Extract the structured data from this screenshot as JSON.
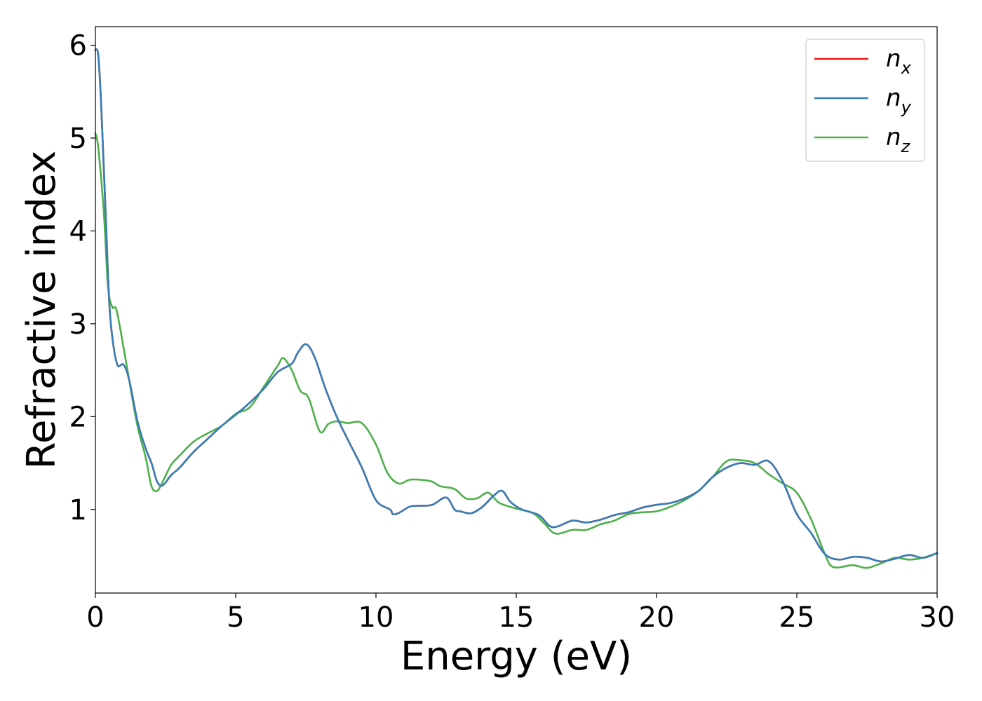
{
  "chart_data": {
    "type": "line",
    "title": "",
    "xlabel": "Energy (eV)",
    "ylabel": "Refractive index",
    "xlim": [
      0,
      30
    ],
    "ylim": [
      0.1,
      6.2
    ],
    "xticks": [
      0,
      5,
      10,
      15,
      20,
      25,
      30
    ],
    "xtick_labels": [
      "0",
      "5",
      "10",
      "15",
      "20",
      "25",
      "30"
    ],
    "yticks": [
      1,
      2,
      3,
      4,
      5,
      6
    ],
    "ytick_labels": [
      "1",
      "2",
      "3",
      "4",
      "5",
      "6"
    ],
    "grid": false,
    "legend_position": "top-right",
    "series": [
      {
        "name": "n",
        "subscript": "x",
        "color": "#e41a1c",
        "points": [
          [
            0,
            5.95
          ],
          [
            0.1,
            5.9
          ],
          [
            0.2,
            5.4
          ],
          [
            0.35,
            4.3
          ],
          [
            0.5,
            3.2
          ],
          [
            0.65,
            2.75
          ],
          [
            0.8,
            2.55
          ],
          [
            1.0,
            2.56
          ],
          [
            1.2,
            2.4
          ],
          [
            1.5,
            1.95
          ],
          [
            1.8,
            1.65
          ],
          [
            2.0,
            1.5
          ],
          [
            2.2,
            1.3
          ],
          [
            2.4,
            1.26
          ],
          [
            2.7,
            1.37
          ],
          [
            3.0,
            1.45
          ],
          [
            3.5,
            1.62
          ],
          [
            4.0,
            1.76
          ],
          [
            4.5,
            1.9
          ],
          [
            5.0,
            2.02
          ],
          [
            5.5,
            2.15
          ],
          [
            6.0,
            2.3
          ],
          [
            6.5,
            2.48
          ],
          [
            7.0,
            2.57
          ],
          [
            7.2,
            2.68
          ],
          [
            7.5,
            2.78
          ],
          [
            7.8,
            2.65
          ],
          [
            8.2,
            2.3
          ],
          [
            8.6,
            2.0
          ],
          [
            9.0,
            1.75
          ],
          [
            9.5,
            1.45
          ],
          [
            10.0,
            1.1
          ],
          [
            10.5,
            1.0
          ],
          [
            10.6,
            0.95
          ],
          [
            10.8,
            0.96
          ],
          [
            11.2,
            1.03
          ],
          [
            11.5,
            1.04
          ],
          [
            12.0,
            1.05
          ],
          [
            12.5,
            1.13
          ],
          [
            12.8,
            1.0
          ],
          [
            13.0,
            0.98
          ],
          [
            13.4,
            0.96
          ],
          [
            13.8,
            1.03
          ],
          [
            14.2,
            1.15
          ],
          [
            14.5,
            1.2
          ],
          [
            14.8,
            1.08
          ],
          [
            15.2,
            1.0
          ],
          [
            15.8,
            0.94
          ],
          [
            16.2,
            0.82
          ],
          [
            16.5,
            0.82
          ],
          [
            17.0,
            0.88
          ],
          [
            17.5,
            0.86
          ],
          [
            18.0,
            0.89
          ],
          [
            18.5,
            0.94
          ],
          [
            19.0,
            0.97
          ],
          [
            19.5,
            1.02
          ],
          [
            20.0,
            1.05
          ],
          [
            20.5,
            1.07
          ],
          [
            21.0,
            1.12
          ],
          [
            21.5,
            1.2
          ],
          [
            22.0,
            1.35
          ],
          [
            22.5,
            1.45
          ],
          [
            23.0,
            1.5
          ],
          [
            23.5,
            1.48
          ],
          [
            24.0,
            1.52
          ],
          [
            24.5,
            1.3
          ],
          [
            25.0,
            0.95
          ],
          [
            25.5,
            0.75
          ],
          [
            26.0,
            0.52
          ],
          [
            26.5,
            0.46
          ],
          [
            27.0,
            0.49
          ],
          [
            27.5,
            0.48
          ],
          [
            28.0,
            0.44
          ],
          [
            28.5,
            0.47
          ],
          [
            29.0,
            0.51
          ],
          [
            29.5,
            0.48
          ],
          [
            30.0,
            0.53
          ]
        ]
      },
      {
        "name": "n",
        "subscript": "y",
        "color": "#377eb8",
        "points": [
          [
            0,
            5.95
          ],
          [
            0.1,
            5.9
          ],
          [
            0.2,
            5.4
          ],
          [
            0.35,
            4.3
          ],
          [
            0.5,
            3.2
          ],
          [
            0.65,
            2.75
          ],
          [
            0.8,
            2.55
          ],
          [
            1.0,
            2.56
          ],
          [
            1.2,
            2.4
          ],
          [
            1.5,
            1.95
          ],
          [
            1.8,
            1.65
          ],
          [
            2.0,
            1.5
          ],
          [
            2.2,
            1.3
          ],
          [
            2.4,
            1.26
          ],
          [
            2.7,
            1.37
          ],
          [
            3.0,
            1.45
          ],
          [
            3.5,
            1.62
          ],
          [
            4.0,
            1.76
          ],
          [
            4.5,
            1.9
          ],
          [
            5.0,
            2.02
          ],
          [
            5.5,
            2.15
          ],
          [
            6.0,
            2.3
          ],
          [
            6.5,
            2.48
          ],
          [
            7.0,
            2.57
          ],
          [
            7.2,
            2.68
          ],
          [
            7.5,
            2.78
          ],
          [
            7.8,
            2.65
          ],
          [
            8.2,
            2.3
          ],
          [
            8.6,
            2.0
          ],
          [
            9.0,
            1.75
          ],
          [
            9.5,
            1.45
          ],
          [
            10.0,
            1.1
          ],
          [
            10.5,
            1.0
          ],
          [
            10.6,
            0.95
          ],
          [
            10.8,
            0.96
          ],
          [
            11.2,
            1.03
          ],
          [
            11.5,
            1.04
          ],
          [
            12.0,
            1.05
          ],
          [
            12.5,
            1.13
          ],
          [
            12.8,
            1.0
          ],
          [
            13.0,
            0.98
          ],
          [
            13.4,
            0.96
          ],
          [
            13.8,
            1.03
          ],
          [
            14.2,
            1.15
          ],
          [
            14.5,
            1.2
          ],
          [
            14.8,
            1.08
          ],
          [
            15.2,
            1.0
          ],
          [
            15.8,
            0.94
          ],
          [
            16.2,
            0.82
          ],
          [
            16.5,
            0.82
          ],
          [
            17.0,
            0.88
          ],
          [
            17.5,
            0.86
          ],
          [
            18.0,
            0.89
          ],
          [
            18.5,
            0.94
          ],
          [
            19.0,
            0.97
          ],
          [
            19.5,
            1.02
          ],
          [
            20.0,
            1.05
          ],
          [
            20.5,
            1.07
          ],
          [
            21.0,
            1.12
          ],
          [
            21.5,
            1.2
          ],
          [
            22.0,
            1.35
          ],
          [
            22.5,
            1.45
          ],
          [
            23.0,
            1.5
          ],
          [
            23.5,
            1.48
          ],
          [
            24.0,
            1.52
          ],
          [
            24.5,
            1.3
          ],
          [
            25.0,
            0.95
          ],
          [
            25.5,
            0.75
          ],
          [
            26.0,
            0.52
          ],
          [
            26.5,
            0.46
          ],
          [
            27.0,
            0.49
          ],
          [
            27.5,
            0.48
          ],
          [
            28.0,
            0.44
          ],
          [
            28.5,
            0.47
          ],
          [
            29.0,
            0.51
          ],
          [
            29.5,
            0.48
          ],
          [
            30.0,
            0.53
          ]
        ]
      },
      {
        "name": "n",
        "subscript": "z",
        "color": "#4daf4a",
        "points": [
          [
            0,
            5.05
          ],
          [
            0.1,
            4.9
          ],
          [
            0.3,
            4.2
          ],
          [
            0.45,
            3.4
          ],
          [
            0.6,
            3.18
          ],
          [
            0.75,
            3.15
          ],
          [
            1.0,
            2.75
          ],
          [
            1.2,
            2.4
          ],
          [
            1.5,
            1.9
          ],
          [
            1.8,
            1.55
          ],
          [
            2.0,
            1.25
          ],
          [
            2.2,
            1.2
          ],
          [
            2.4,
            1.3
          ],
          [
            2.7,
            1.48
          ],
          [
            3.0,
            1.58
          ],
          [
            3.5,
            1.73
          ],
          [
            4.0,
            1.82
          ],
          [
            4.5,
            1.9
          ],
          [
            5.0,
            2.03
          ],
          [
            5.5,
            2.1
          ],
          [
            6.0,
            2.32
          ],
          [
            6.5,
            2.55
          ],
          [
            6.7,
            2.63
          ],
          [
            7.0,
            2.5
          ],
          [
            7.3,
            2.28
          ],
          [
            7.6,
            2.2
          ],
          [
            8.0,
            1.84
          ],
          [
            8.3,
            1.92
          ],
          [
            8.6,
            1.95
          ],
          [
            9.0,
            1.93
          ],
          [
            9.5,
            1.93
          ],
          [
            10.0,
            1.7
          ],
          [
            10.4,
            1.4
          ],
          [
            10.8,
            1.28
          ],
          [
            11.2,
            1.32
          ],
          [
            11.6,
            1.32
          ],
          [
            12.0,
            1.3
          ],
          [
            12.3,
            1.25
          ],
          [
            12.8,
            1.22
          ],
          [
            13.2,
            1.12
          ],
          [
            13.6,
            1.12
          ],
          [
            14.0,
            1.18
          ],
          [
            14.4,
            1.07
          ],
          [
            15.0,
            1.01
          ],
          [
            15.6,
            0.96
          ],
          [
            16.0,
            0.85
          ],
          [
            16.4,
            0.74
          ],
          [
            17.0,
            0.78
          ],
          [
            17.5,
            0.78
          ],
          [
            18.0,
            0.84
          ],
          [
            18.5,
            0.88
          ],
          [
            19.0,
            0.95
          ],
          [
            19.5,
            0.97
          ],
          [
            20.0,
            0.98
          ],
          [
            20.5,
            1.03
          ],
          [
            21.0,
            1.1
          ],
          [
            21.5,
            1.2
          ],
          [
            22.0,
            1.35
          ],
          [
            22.5,
            1.52
          ],
          [
            23.0,
            1.53
          ],
          [
            23.5,
            1.5
          ],
          [
            24.0,
            1.38
          ],
          [
            24.5,
            1.28
          ],
          [
            25.0,
            1.18
          ],
          [
            25.5,
            0.9
          ],
          [
            26.0,
            0.52
          ],
          [
            26.3,
            0.38
          ],
          [
            27.0,
            0.4
          ],
          [
            27.5,
            0.37
          ],
          [
            28.0,
            0.42
          ],
          [
            28.5,
            0.48
          ],
          [
            29.0,
            0.46
          ],
          [
            29.5,
            0.48
          ],
          [
            30.0,
            0.53
          ]
        ]
      }
    ]
  }
}
